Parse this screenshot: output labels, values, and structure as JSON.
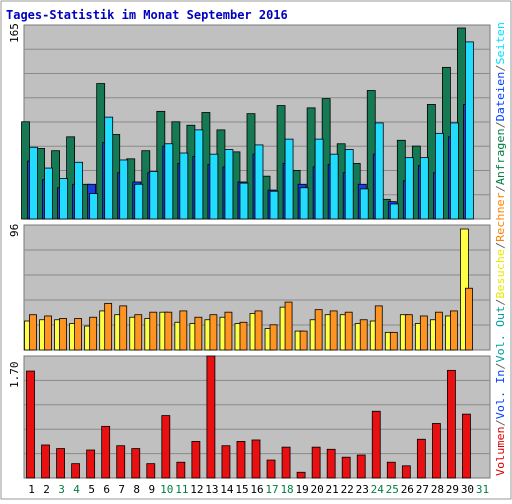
{
  "chart_data": [
    {
      "type": "bar",
      "title": "Tages-Statistik im Monat September 2016",
      "ymax_label": "165",
      "legend": [
        {
          "text": "Anfragen",
          "color": "#008040"
        },
        {
          "text": "/",
          "color": "#606060"
        },
        {
          "text": "Dateien",
          "color": "#0040ff"
        },
        {
          "text": "/",
          "color": "#606060"
        },
        {
          "text": "Seiten",
          "color": "#00e0ff"
        }
      ],
      "categories": [
        "1",
        "2",
        "3",
        "4",
        "5",
        "6",
        "7",
        "8",
        "9",
        "10",
        "11",
        "12",
        "13",
        "14",
        "15",
        "16",
        "17",
        "18",
        "19",
        "20",
        "21",
        "22",
        "23",
        "24",
        "25",
        "26",
        "27",
        "28",
        "29",
        "30",
        "31"
      ],
      "series": [
        {
          "name": "Anfragen",
          "color": "#157a54",
          "values": [
            84,
            61,
            59,
            71,
            30,
            117,
            73,
            52,
            59,
            93,
            84,
            81,
            92,
            77,
            58,
            91,
            37,
            98,
            42,
            96,
            104,
            65,
            48,
            111,
            17,
            68,
            63,
            99,
            131,
            165,
            0
          ]
        },
        {
          "name": "Dateien",
          "color": "#1a3ee6",
          "values": [
            50,
            34,
            27,
            30,
            30,
            66,
            40,
            32,
            40,
            63,
            48,
            54,
            47,
            45,
            32,
            56,
            25,
            48,
            30,
            45,
            47,
            40,
            30,
            56,
            15,
            33,
            46,
            40,
            71,
            99,
            0
          ]
        },
        {
          "name": "Seiten",
          "color": "#22ddff",
          "values": [
            62,
            44,
            35,
            49,
            22,
            88,
            51,
            30,
            41,
            65,
            57,
            77,
            56,
            60,
            31,
            64,
            24,
            69,
            27,
            69,
            56,
            60,
            26,
            83,
            13,
            53,
            53,
            74,
            83,
            153,
            0
          ]
        }
      ]
    },
    {
      "type": "bar",
      "ymax_label": "96",
      "legend": [
        {
          "text": "Besuche",
          "color": "#e8e800"
        },
        {
          "text": "/",
          "color": "#606060"
        },
        {
          "text": "Rechner",
          "color": "#ff8000"
        }
      ],
      "series": [
        {
          "name": "Besuche",
          "color": "#ffff44",
          "values": [
            23,
            24,
            24,
            21,
            19,
            31,
            28,
            26,
            25,
            30,
            22,
            21,
            24,
            26,
            21,
            29,
            17,
            34,
            15,
            24,
            28,
            28,
            21,
            23,
            14,
            28,
            21,
            24,
            27,
            96,
            0
          ]
        },
        {
          "name": "Rechner",
          "color": "#ff9422",
          "values": [
            28,
            27,
            25,
            25,
            26,
            37,
            35,
            28,
            30,
            30,
            31,
            26,
            28,
            30,
            22,
            31,
            20,
            38,
            15,
            32,
            31,
            30,
            24,
            35,
            14,
            28,
            27,
            30,
            31,
            49,
            0
          ]
        }
      ]
    },
    {
      "type": "bar",
      "ymax_label": "1.70",
      "legend": [
        {
          "text": "Volumen",
          "color": "#e00000"
        },
        {
          "text": "/",
          "color": "#606060"
        },
        {
          "text": "Vol. In",
          "color": "#0040ff"
        },
        {
          "text": "/",
          "color": "#606060"
        },
        {
          "text": "Vol. Out",
          "color": "#00a0a0"
        }
      ],
      "series": [
        {
          "name": "Volumen",
          "color": "#e81010",
          "values": [
            1.49,
            0.46,
            0.41,
            0.2,
            0.39,
            0.72,
            0.45,
            0.41,
            0.2,
            0.87,
            0.22,
            0.51,
            1.7,
            0.45,
            0.51,
            0.53,
            0.25,
            0.43,
            0.08,
            0.43,
            0.4,
            0.29,
            0.32,
            0.93,
            0.22,
            0.17,
            0.54,
            0.76,
            1.5,
            0.89,
            0
          ]
        }
      ]
    }
  ],
  "weekend_days": [
    "3",
    "4",
    "10",
    "11",
    "17",
    "18",
    "24",
    "25",
    "31"
  ],
  "colors": {
    "plot_bg": "#c0c0c0",
    "grid": "#8a8a8a",
    "day_normal": "#000000",
    "day_weekend": "#008040",
    "title": "#0000c0"
  }
}
